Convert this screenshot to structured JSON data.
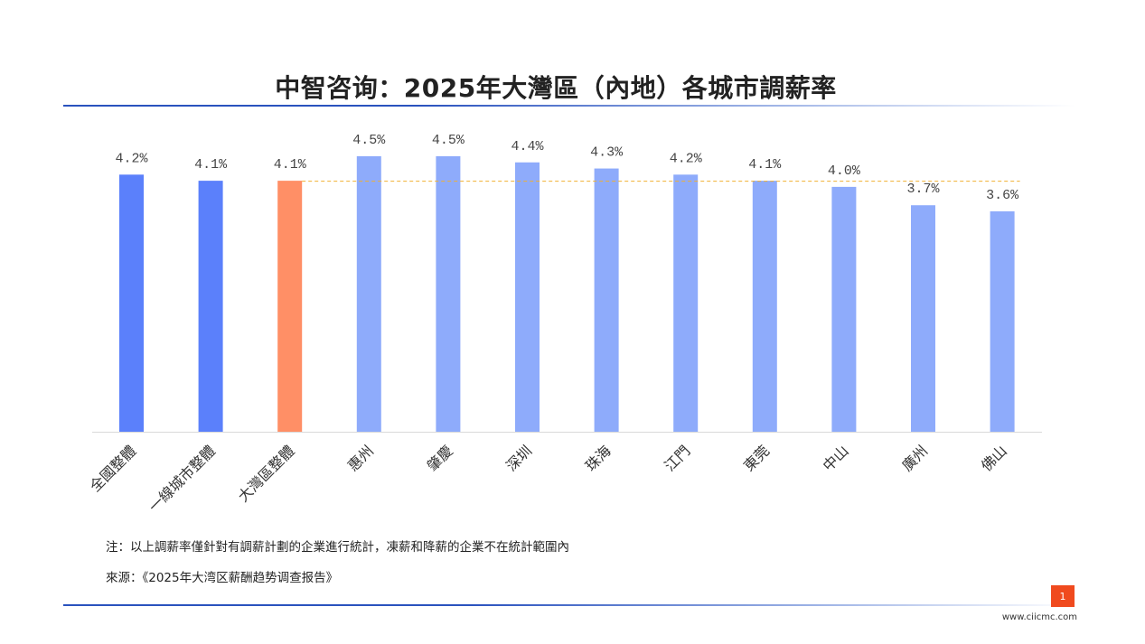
{
  "header": {
    "title": "中智咨询：2025年大灣區（內地）各城市調薪率"
  },
  "footer": {
    "note": "注：以上調薪率僅針對有調薪計劃的企業進行統計，凍薪和降薪的企業不在統計範圍內",
    "source": "來源：《2025年大湾区薪酬趋势调查报告》",
    "page_number": "1",
    "website": "www.ciicmc.com"
  },
  "colors": {
    "dark_blue": "#5b80fb",
    "orange": "#ff8f66",
    "light_blue": "#8eabfb",
    "reference_line": "#f0b030",
    "title_rule": "#2a52be",
    "page_badge": "#f04a1e"
  },
  "chart_data": {
    "type": "bar",
    "title": "中智咨询：2025年大灣區（內地）各城市調薪率",
    "xlabel": "",
    "ylabel": "",
    "ylim": [
      0,
      4.5
    ],
    "grid": false,
    "legend": "none",
    "value_suffix": "%",
    "reference_line": {
      "value": 4.1,
      "style": "dashed",
      "label": "大灣區整體"
    },
    "categories": [
      "全國整體",
      "一線城市整體",
      "大灣區整體",
      "惠州",
      "肇慶",
      "深圳",
      "珠海",
      "江門",
      "東莞",
      "中山",
      "廣州",
      "佛山"
    ],
    "values": [
      4.2,
      4.1,
      4.1,
      4.5,
      4.5,
      4.4,
      4.3,
      4.2,
      4.1,
      4.0,
      3.7,
      3.6
    ],
    "bar_colors": [
      "dark_blue",
      "dark_blue",
      "orange",
      "light_blue",
      "light_blue",
      "light_blue",
      "light_blue",
      "light_blue",
      "light_blue",
      "light_blue",
      "light_blue",
      "light_blue"
    ]
  }
}
